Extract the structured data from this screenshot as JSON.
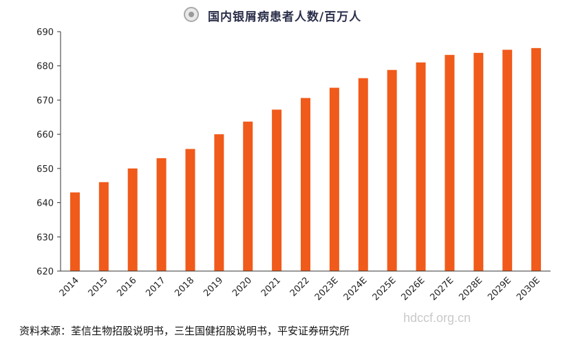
{
  "header": {
    "title": "国内银屑病患者人数/百万人"
  },
  "chart_data": {
    "type": "bar",
    "title": "国内银屑病患者人数/百万人",
    "xlabel": "",
    "ylabel": "",
    "categories": [
      "2014",
      "2015",
      "2016",
      "2017",
      "2018",
      "2019",
      "2020",
      "2021",
      "2022",
      "2023E",
      "2024E",
      "2025E",
      "2026E",
      "2027E",
      "2028E",
      "2029E",
      "2030E"
    ],
    "values": [
      643,
      646,
      650,
      653,
      655.7,
      660,
      663.7,
      667.2,
      670.6,
      673.6,
      676.4,
      678.8,
      681,
      683.2,
      683.8,
      684.7,
      685.2
    ],
    "ylim": [
      620,
      690
    ],
    "yticks": [
      620,
      630,
      640,
      650,
      660,
      670,
      680,
      690
    ],
    "grid": false,
    "legend": "none",
    "bar_color": "#f05a1a"
  },
  "footer": {
    "source": "资料来源：荃信生物招股说明书，三生国健招股说明书，平安证券研究所",
    "watermark": "hdccf.org.cn"
  }
}
